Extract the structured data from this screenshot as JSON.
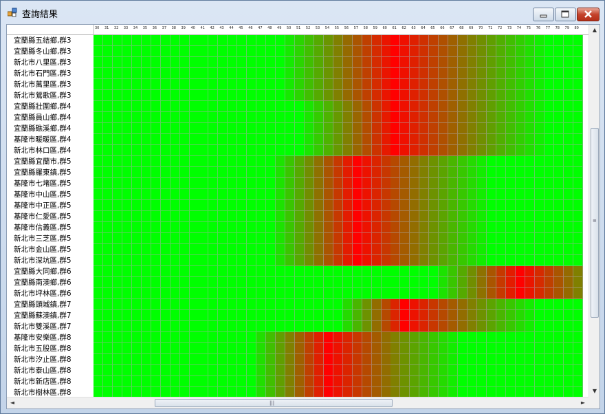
{
  "window": {
    "title": "查詢結果",
    "controls": {
      "minimize": "minimize",
      "maximize": "maximize",
      "close": "close"
    }
  },
  "grid": {
    "columns": [
      "30",
      "31",
      "32",
      "33",
      "34",
      "35",
      "36",
      "37",
      "38",
      "39",
      "40",
      "41",
      "42",
      "43",
      "44",
      "45",
      "46",
      "47",
      "48",
      "49",
      "50",
      "51",
      "52",
      "53",
      "54",
      "55",
      "56",
      "57",
      "58",
      "59",
      "60",
      "61",
      "62",
      "63",
      "64",
      "65",
      "66",
      "67",
      "68",
      "69",
      "70",
      "71",
      "72",
      "73",
      "74",
      "75",
      "76",
      "77",
      "78",
      "79",
      "80"
    ],
    "rows": [
      "宜蘭縣五結鄉,群3",
      "宜蘭縣冬山鄉,群3",
      "新北市八里區,群3",
      "新北市石門區,群3",
      "新北市萬里區,群3",
      "新北市鶯歌區,群3",
      "宜蘭縣壯圍鄉,群4",
      "宜蘭縣員山鄉,群4",
      "宜蘭縣礁溪鄉,群4",
      "基隆市暖暖區,群4",
      "新北市林口區,群4",
      "宜蘭縣宜蘭市,群5",
      "宜蘭縣羅東鎮,群5",
      "基隆市七堵區,群5",
      "基隆市中山區,群5",
      "基隆市中正區,群5",
      "基隆市仁愛區,群5",
      "基隆市信義區,群5",
      "新北市三芝區,群5",
      "新北市金山區,群5",
      "新北市深坑區,群5",
      "宜蘭縣大同鄉,群6",
      "宜蘭縣南澳鄉,群6",
      "新北市坪林區,群6",
      "宜蘭縣頭城鎮,群7",
      "宜蘭縣蘇澳鎮,群7",
      "新北市雙溪區,群7",
      "基隆市安樂區,群8",
      "新北市五股區,群8",
      "新北市汐止區,群8",
      "新北市泰山區,群8",
      "新北市新店區,群8",
      "新北市樹林區,群8"
    ],
    "row_groups": [
      3,
      3,
      3,
      3,
      3,
      3,
      4,
      4,
      4,
      4,
      4,
      5,
      5,
      5,
      5,
      5,
      5,
      5,
      5,
      5,
      5,
      6,
      6,
      6,
      7,
      7,
      7,
      8,
      8,
      8,
      8,
      8,
      8
    ],
    "group_peaks": {
      "3": {
        "peak_column": "61",
        "spread_left": 12,
        "spread_right": 16
      },
      "4": {
        "peak_column": "61",
        "spread_left": 10,
        "spread_right": 16
      },
      "5": {
        "peak_column": "57",
        "spread_left": 9,
        "spread_right": 14
      },
      "6": {
        "peak_column": "74",
        "spread_left": 9,
        "spread_right": 12
      },
      "7": {
        "peak_column": "62",
        "spread_left": 7,
        "spread_right": 14
      },
      "8": {
        "peak_column": "54",
        "spread_left": 8,
        "spread_right": 14
      }
    },
    "colors": {
      "low": "#00ff00",
      "mid": "#808000",
      "high": "#ff0000",
      "cell_border": "#aaaaaa"
    }
  },
  "scrollbars": {
    "vertical": {
      "up_icon": "▲",
      "down_icon": "▼",
      "grip": "≡"
    },
    "horizontal": {
      "left_icon": "◄",
      "right_icon": "►",
      "grip": "|||"
    }
  }
}
